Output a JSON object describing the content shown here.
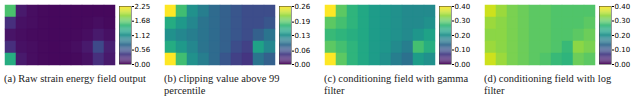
{
  "chart_data": [
    {
      "type": "heatmap",
      "caption": "(a) Raw strain energy field output",
      "color_range": [
        0,
        2.25
      ],
      "color_ticks": [
        {
          "value": 0,
          "label": "0.00"
        },
        0.56,
        1.12,
        1.68,
        2.25
      ],
      "cells": [
        [
          1.6,
          0.15,
          0.08,
          0.06,
          0.05,
          0.05,
          0.05,
          0.05,
          0.05,
          0.05
        ],
        [
          0.3,
          0.1,
          0.08,
          0.06,
          0.05,
          0.05,
          0.05,
          0.06,
          0.08,
          0.06
        ],
        [
          0.12,
          0.08,
          0.07,
          0.06,
          0.05,
          0.05,
          0.06,
          0.08,
          0.15,
          0.1
        ],
        [
          0.3,
          0.1,
          0.08,
          0.06,
          0.05,
          0.06,
          0.08,
          0.15,
          0.5,
          0.2
        ],
        [
          1.4,
          0.15,
          0.08,
          0.06,
          0.05,
          0.05,
          0.06,
          0.1,
          0.3,
          0.15
        ]
      ]
    },
    {
      "type": "heatmap",
      "caption": "(b) clipping value above 99 percentile",
      "color_range": [
        0,
        0.26
      ],
      "color_ticks": [
        {
          "value": 0,
          "label": "0.00"
        },
        0.06,
        0.13,
        0.19,
        0.26
      ],
      "cells": [
        [
          0.26,
          0.18,
          0.13,
          0.11,
          0.09,
          0.08,
          0.07,
          0.06,
          0.06,
          0.06
        ],
        [
          0.16,
          0.14,
          0.12,
          0.1,
          0.09,
          0.08,
          0.07,
          0.06,
          0.06,
          0.07
        ],
        [
          0.13,
          0.12,
          0.11,
          0.1,
          0.09,
          0.08,
          0.07,
          0.06,
          0.08,
          0.1
        ],
        [
          0.16,
          0.14,
          0.12,
          0.1,
          0.09,
          0.08,
          0.06,
          0.05,
          0.15,
          0.12
        ],
        [
          0.26,
          0.18,
          0.13,
          0.11,
          0.09,
          0.07,
          0.05,
          0.04,
          0.1,
          0.08
        ]
      ]
    },
    {
      "type": "heatmap",
      "caption": "(c) conditioning field with gamma filter",
      "color_range": [
        0,
        0.4
      ],
      "color_ticks": [
        {
          "value": 0,
          "label": "0.00"
        },
        {
          "value": 0.1,
          "label": "0.10"
        },
        {
          "value": 0.2,
          "label": "0.20"
        },
        {
          "value": 0.3,
          "label": "0.30"
        },
        {
          "value": 0.4,
          "label": "0.40"
        }
      ],
      "cells": [
        [
          0.4,
          0.3,
          0.26,
          0.24,
          0.22,
          0.21,
          0.2,
          0.19,
          0.19,
          0.19
        ],
        [
          0.3,
          0.28,
          0.26,
          0.24,
          0.22,
          0.21,
          0.2,
          0.19,
          0.19,
          0.2
        ],
        [
          0.27,
          0.26,
          0.25,
          0.24,
          0.22,
          0.21,
          0.2,
          0.19,
          0.21,
          0.23
        ],
        [
          0.3,
          0.28,
          0.26,
          0.24,
          0.22,
          0.21,
          0.19,
          0.17,
          0.28,
          0.25
        ],
        [
          0.4,
          0.3,
          0.26,
          0.24,
          0.22,
          0.2,
          0.17,
          0.15,
          0.22,
          0.2
        ]
      ]
    },
    {
      "type": "heatmap",
      "caption": "(d) conditioning field with log filter",
      "color_range": [
        0,
        0.4
      ],
      "color_ticks": [
        {
          "value": 0,
          "label": "0.00"
        },
        {
          "value": 0.1,
          "label": "0.10"
        },
        {
          "value": 0.2,
          "label": "0.20"
        },
        {
          "value": 0.3,
          "label": "0.30"
        },
        {
          "value": 0.4,
          "label": "0.40"
        }
      ],
      "cells": [
        [
          0.37,
          0.34,
          0.32,
          0.31,
          0.3,
          0.3,
          0.29,
          0.29,
          0.29,
          0.29
        ],
        [
          0.34,
          0.33,
          0.32,
          0.31,
          0.3,
          0.3,
          0.29,
          0.29,
          0.29,
          0.3
        ],
        [
          0.33,
          0.33,
          0.32,
          0.31,
          0.3,
          0.3,
          0.29,
          0.29,
          0.3,
          0.31
        ],
        [
          0.34,
          0.33,
          0.32,
          0.31,
          0.3,
          0.3,
          0.29,
          0.27,
          0.33,
          0.32
        ],
        [
          0.37,
          0.34,
          0.32,
          0.31,
          0.3,
          0.29,
          0.27,
          0.26,
          0.31,
          0.3
        ]
      ]
    }
  ]
}
